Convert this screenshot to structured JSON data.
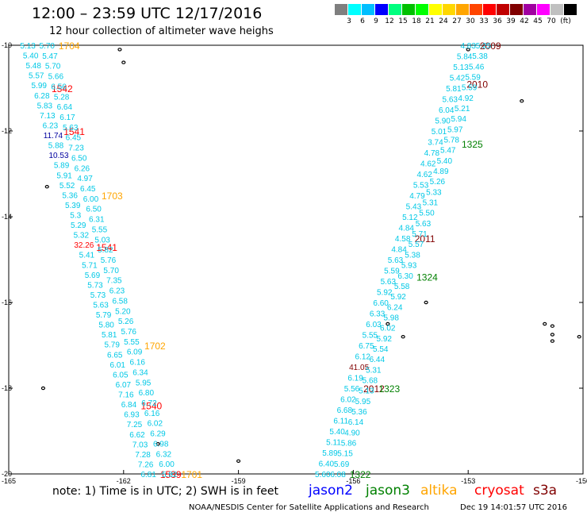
{
  "header": {
    "title": "12:00 – 23:59 UTC 12/17/2016",
    "subtitle": "12 hour collection of altimeter wave heighs"
  },
  "color_scale": {
    "unit": "(ft)",
    "colors": [
      "#7f7f7f",
      "#00ffff",
      "#00bfff",
      "#0000ff",
      "#00ff7f",
      "#00c000",
      "#00ff00",
      "#ffff00",
      "#ffd700",
      "#ffa500",
      "#ff4500",
      "#ff0000",
      "#c00000",
      "#800000",
      "#a000a0",
      "#ff00ff",
      "#c0c0c0",
      "#000000"
    ],
    "labels": [
      "3",
      "6",
      "9",
      "12",
      "15",
      "18",
      "21",
      "24",
      "27",
      "30",
      "33",
      "36",
      "39",
      "42",
      "45",
      "70"
    ]
  },
  "axes": {
    "lon_ticks": [
      "-165",
      "-162",
      "-159",
      "-156",
      "-153",
      "-150"
    ],
    "lat_ticks": [
      "-10",
      "-12",
      "-14",
      "-16",
      "-18",
      "-20"
    ],
    "lon_range": [
      -165,
      -150
    ],
    "lat_range": [
      -20,
      -10
    ]
  },
  "chart_data": {
    "type": "scatter",
    "tracks": [
      {
        "mission": "cryosat",
        "color": "#ff0000",
        "lon_start": -164.5,
        "lon_end": -161.35,
        "values": [
          "5.13",
          "5.40",
          "5.48",
          "5.57",
          "5.99",
          "6.28",
          "5.83",
          "7.13",
          "6.23",
          "11.74",
          "5.88",
          "10.53",
          "5.89",
          "5.91",
          "5.52",
          "5.36",
          "5.39",
          "5.3",
          "5.29",
          "5.32",
          "32.26",
          "5.41",
          "5.71",
          "5.69",
          "5.73",
          "5.73",
          "5.63",
          "5.79",
          "5.80",
          "5.81",
          "5.79",
          "6.65",
          "6.01",
          "6.05",
          "6.07",
          "7.16",
          "6.84",
          "6.93",
          "7.25",
          "6.62",
          "7.03",
          "7.28",
          "7.26",
          "6.81"
        ],
        "value_colors": {
          "11.74": "#00009f",
          "10.53": "#00009f",
          "32.26": "#ff0000"
        },
        "time_labels": [
          {
            "text": "1542",
            "lat": -11.0
          },
          {
            "text": "1541",
            "lat": -12.0
          },
          {
            "text": "1541",
            "lat": -14.7
          },
          {
            "text": "1540",
            "lat": -18.4
          },
          {
            "text": "1539",
            "lat": -20.0
          }
        ]
      },
      {
        "mission": "altika",
        "color": "#ffa500",
        "lon_start": -164.0,
        "lon_end": -160.8,
        "values": [
          "5.70",
          "5.47",
          "5.70",
          "5.66",
          "6.56",
          "5.28",
          "6.64",
          "6.17",
          "5.63",
          "6.45",
          "7.23",
          "6.50",
          "6.26",
          "4.97",
          "6.45",
          "6.00",
          "6.50",
          "6.31",
          "5.55",
          "5.03",
          "5.82",
          "5.76",
          "5.70",
          "7.35",
          "6.23",
          "6.58",
          "5.20",
          "5.26",
          "5.76",
          "5.55",
          "6.09",
          "6.16",
          "6.34",
          "5.95",
          "6.80",
          "6.72",
          "6.16",
          "6.02",
          "6.29",
          "6.98",
          "6.32",
          "6.00",
          "5.82"
        ],
        "time_labels": [
          {
            "text": "1704",
            "lat": -10.0
          },
          {
            "text": "1703",
            "lat": -13.5
          },
          {
            "text": "1702",
            "lat": -17.0
          },
          {
            "text": "1701",
            "lat": -20.0
          }
        ]
      },
      {
        "mission": "s3a",
        "color": "#800000",
        "lon_start": -153.0,
        "lon_end": -156.8,
        "values": [
          "4.83",
          "5.84",
          "5.13",
          "5.42",
          "5.81",
          "5.63",
          "6.04",
          "5.90",
          "5.01",
          "3.74",
          "4.78",
          "4.62",
          "4.62",
          "5.53",
          "4.79",
          "5.43",
          "5.12",
          "4.84",
          "4.58",
          "4.84",
          "5.63",
          "5.59",
          "5.63",
          "5.92",
          "6.60",
          "6.33",
          "6.03",
          "5.55",
          "6.75",
          "6.12",
          "41.05",
          "6.19",
          "5.56",
          "6.02",
          "6.68",
          "6.11",
          "5.40",
          "5.11",
          "5.89",
          "6.40",
          "5.60"
        ],
        "value_colors": {
          "41.05": "#800000"
        },
        "time_labels": [
          {
            "text": "2009",
            "lat": -10.0
          },
          {
            "text": "2010",
            "lat": -10.9
          },
          {
            "text": "2011",
            "lat": -14.5
          },
          {
            "text": "2012",
            "lat": -18.0
          }
        ]
      },
      {
        "mission": "jason3",
        "color": "#008000",
        "lon_start": -152.6,
        "lon_end": -156.4,
        "values": [
          "5.25",
          "5.38",
          "5.46",
          "5.59",
          "5.59",
          "4.92",
          "5.21",
          "5.94",
          "5.97",
          "5.78",
          "5.47",
          "5.40",
          "4.89",
          "5.26",
          "5.33",
          "5.31",
          "5.50",
          "5.63",
          "5.71",
          "5.57",
          "5.38",
          "5.93",
          "6.30",
          "5.58",
          "5.92",
          "6.24",
          "5.98",
          "6.02",
          "5.92",
          "5.54",
          "6.44",
          "5.31",
          "5.68",
          "5.13",
          "5.95",
          "5.36",
          "6.14",
          "4.90",
          "5.86",
          "5.15",
          "5.69",
          "6.08"
        ],
        "time_labels": [
          {
            "text": "1325",
            "lat": -12.3
          },
          {
            "text": "1324",
            "lat": -15.4
          },
          {
            "text": "1323",
            "lat": -18.0
          },
          {
            "text": "1322",
            "lat": -20.0
          }
        ]
      }
    ],
    "legend": [
      {
        "name": "jason2",
        "color": "#0000ff"
      },
      {
        "name": "jason3",
        "color": "#008000"
      },
      {
        "name": "altika",
        "color": "#ffa500"
      },
      {
        "name": "cryosat",
        "color": "#ff0000"
      },
      {
        "name": "s3a",
        "color": "#800000"
      }
    ],
    "islands": [
      [
        -162.1,
        -10.1
      ],
      [
        -162.0,
        -10.4
      ],
      [
        -164.0,
        -13.3
      ],
      [
        -164.1,
        -18.0
      ],
      [
        -161.1,
        -19.3
      ],
      [
        -159.0,
        -19.7
      ],
      [
        -153.0,
        -10.1
      ],
      [
        -151.6,
        -11.3
      ],
      [
        -154.1,
        -16.0
      ],
      [
        -155.1,
        -16.5
      ],
      [
        -154.7,
        -16.8
      ],
      [
        -151.0,
        -16.5
      ],
      [
        -150.8,
        -16.55
      ],
      [
        -150.8,
        -16.75
      ],
      [
        -150.1,
        -16.8
      ],
      [
        -150.8,
        -16.9
      ],
      [
        -149.4,
        -17.7
      ]
    ]
  },
  "footer": {
    "note": "note: 1) Time is in UTC; 2) SWH is in feet",
    "credit": "NOAA/NESDIS Center for Satellite Applications and Research",
    "timestamp": "Dec 19 14:01:57 UTC 2016"
  }
}
